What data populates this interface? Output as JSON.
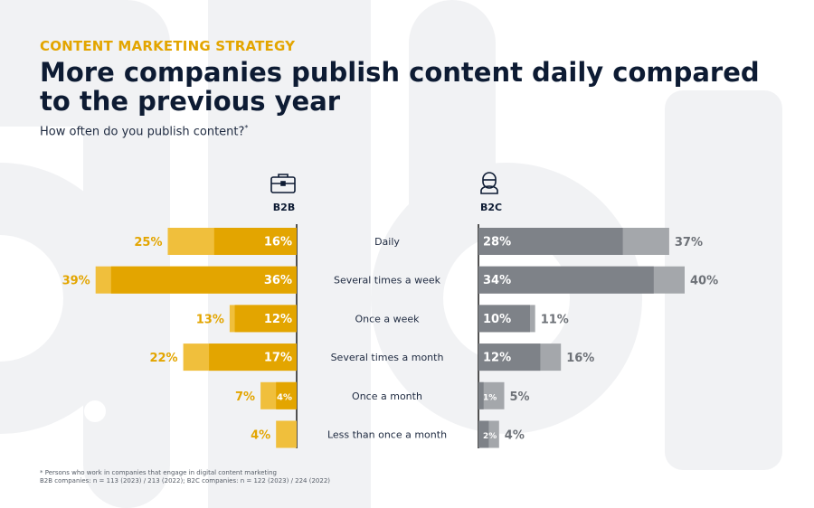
{
  "header": {
    "kicker": "CONTENT MARKETING STRATEGY",
    "title": "More companies publish content daily compared to the previous year",
    "subtitle": "How often do you publish content?",
    "subtitle_mark": "*"
  },
  "footnotes": [
    "* Persons who work in companies that engage in digital content marketing",
    "B2B companies: n = 113 (2023) / 213 (2022); B2C companies: n = 122 (2023) / 224 (2022)"
  ],
  "icons": {
    "b2b": "briefcase-icon",
    "b2c": "person-icon"
  },
  "colors": {
    "b2b_light": "#f0bf3c",
    "b2b_dark": "#e3a500",
    "b2c_light": "#a4a7ab",
    "b2c_dark": "#7e8288",
    "axis": "#1a1a1a",
    "bg_shape": "#f1f2f4"
  },
  "chart_data": {
    "type": "bar",
    "orientation": "horizontal-diverging",
    "categories": [
      "Daily",
      "Several times a week",
      "Once a week",
      "Several times a month",
      "Once a month",
      "Less than once a month"
    ],
    "groups": [
      {
        "name": "B2B",
        "series": [
          {
            "values": [
              25,
              39,
              13,
              22,
              7,
              4
            ]
          },
          {
            "values": [
              16,
              36,
              12,
              17,
              4,
              null
            ]
          }
        ],
        "labels_outer": [
          "25%",
          "39%",
          "13%",
          "22%",
          "7%",
          "4%"
        ],
        "labels_inner": [
          "16%",
          "36%",
          "12%",
          "17%",
          "4%",
          ""
        ]
      },
      {
        "name": "B2C",
        "series": [
          {
            "values": [
              37,
              40,
              11,
              16,
              5,
              4
            ]
          },
          {
            "values": [
              28,
              34,
              10,
              12,
              1,
              2
            ]
          }
        ],
        "labels_outer": [
          "37%",
          "40%",
          "11%",
          "16%",
          "5%",
          "4%"
        ],
        "labels_inner": [
          "28%",
          "34%",
          "10%",
          "12%",
          "1%",
          "2%"
        ]
      }
    ]
  }
}
